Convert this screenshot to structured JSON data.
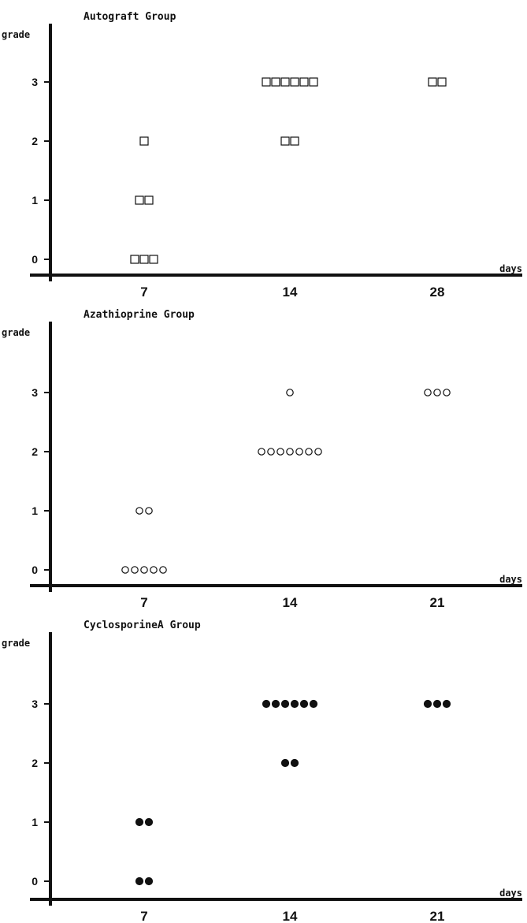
{
  "chart_data": [
    {
      "type": "scatter",
      "title": "Autograft  Group",
      "ylabel": "grade",
      "xlabel": "days",
      "marker": "open-square",
      "y_ticks": [
        "0",
        "1",
        "2",
        "3"
      ],
      "x_ticks": [
        "7",
        "14",
        "28"
      ],
      "points": [
        {
          "day": "7",
          "grade": 0,
          "count": 3
        },
        {
          "day": "7",
          "grade": 1,
          "count": 2
        },
        {
          "day": "7",
          "grade": 2,
          "count": 1
        },
        {
          "day": "14",
          "grade": 2,
          "count": 2
        },
        {
          "day": "14",
          "grade": 3,
          "count": 6
        },
        {
          "day": "28",
          "grade": 3,
          "count": 2
        }
      ]
    },
    {
      "type": "scatter",
      "title": "Azathioprine  Group",
      "ylabel": "grade",
      "xlabel": "days",
      "marker": "open-circle",
      "y_ticks": [
        "0",
        "1",
        "2",
        "3"
      ],
      "x_ticks": [
        "7",
        "14",
        "21"
      ],
      "points": [
        {
          "day": "7",
          "grade": 0,
          "count": 5
        },
        {
          "day": "7",
          "grade": 1,
          "count": 2
        },
        {
          "day": "14",
          "grade": 2,
          "count": 7
        },
        {
          "day": "14",
          "grade": 3,
          "count": 1
        },
        {
          "day": "21",
          "grade": 3,
          "count": 3
        }
      ]
    },
    {
      "type": "scatter",
      "title": "CyclosporineA  Group",
      "ylabel": "grade",
      "xlabel": "days",
      "marker": "filled-circle",
      "y_ticks": [
        "0",
        "1",
        "2",
        "3"
      ],
      "x_ticks": [
        "7",
        "14",
        "21"
      ],
      "points": [
        {
          "day": "7",
          "grade": 0,
          "count": 2
        },
        {
          "day": "7",
          "grade": 1,
          "count": 2
        },
        {
          "day": "14",
          "grade": 2,
          "count": 2
        },
        {
          "day": "14",
          "grade": 3,
          "count": 6
        },
        {
          "day": "21",
          "grade": 3,
          "count": 3
        }
      ]
    }
  ]
}
